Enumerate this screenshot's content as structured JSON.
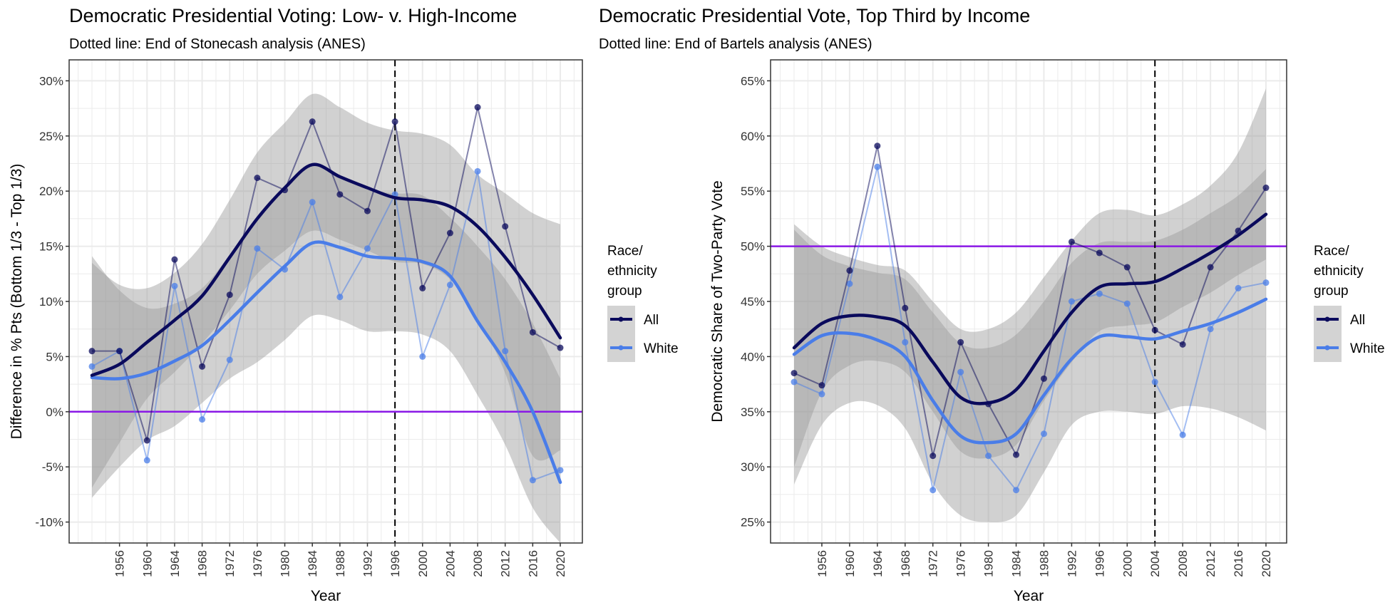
{
  "chart_data": [
    {
      "type": "line",
      "title": "Democratic Presidential Voting: Low- v. High-Income",
      "subtitle": "Dotted line: End of Stonecash analysis (ANES)",
      "xlabel": "Year",
      "ylabel": "Difference in % Pts (Bottom 1/3 - Top 1/3)",
      "x": [
        1952,
        1956,
        1960,
        1964,
        1968,
        1972,
        1976,
        1980,
        1984,
        1988,
        1992,
        1996,
        2000,
        2004,
        2008,
        2012,
        2016,
        2020
      ],
      "xticks": [
        "1956",
        "1960",
        "1964",
        "1968",
        "1972",
        "1976",
        "1980",
        "1984",
        "1988",
        "1992",
        "1996",
        "2000",
        "2004",
        "2008",
        "2012",
        "2016",
        "2020"
      ],
      "ylim": [
        -11.9,
        31.9
      ],
      "yticks": [
        -10,
        -5,
        0,
        5,
        10,
        15,
        20,
        25,
        30
      ],
      "ytick_labels": [
        "-10%",
        "-5%",
        "0%",
        "5%",
        "10%",
        "15%",
        "20%",
        "25%",
        "30%"
      ],
      "hline": 0,
      "vline": 1996,
      "grid": true,
      "legend": {
        "title": "Race/ ethnicity group",
        "title_lines": [
          "Race/",
          "ethnicity",
          "group"
        ],
        "placement": "right"
      },
      "series": [
        {
          "name": "All",
          "color": "#0a0a5c",
          "values": [
            5.5,
            5.5,
            -2.6,
            13.8,
            4.1,
            10.6,
            21.2,
            20.1,
            26.3,
            19.7,
            18.2,
            26.3,
            11.2,
            16.2,
            27.6,
            16.8,
            7.2,
            5.8
          ],
          "smooth": [
            3.3,
            4.3,
            6.3,
            8.3,
            10.5,
            14.0,
            17.5,
            20.3,
            22.4,
            21.3,
            20.3,
            19.4,
            19.2,
            18.6,
            16.8,
            14.0,
            10.6,
            6.7
          ],
          "ci_upper": [
            13.5,
            11.5,
            11.2,
            12.6,
            15.2,
            19.2,
            23.5,
            26.2,
            28.8,
            27.6,
            26.2,
            25.5,
            25.2,
            24.2,
            21.5,
            19.8,
            18.0,
            17.0
          ],
          "ci_lower": [
            -6.9,
            -2.8,
            1.2,
            3.6,
            6.2,
            9.2,
            12.5,
            14.6,
            16.4,
            15.6,
            14.6,
            13.6,
            13.4,
            12.0,
            8.5,
            3.5,
            -4.0,
            -3.5
          ]
        },
        {
          "name": "White",
          "color": "#4a7de8",
          "values": [
            4.1,
            5.5,
            -4.4,
            11.4,
            -0.7,
            4.7,
            14.8,
            12.9,
            19.0,
            10.4,
            14.8,
            19.7,
            5.0,
            11.5,
            21.8,
            5.5,
            -6.2,
            -5.3
          ],
          "smooth": [
            3.1,
            3.0,
            3.5,
            4.6,
            6.0,
            8.3,
            10.8,
            13.2,
            15.3,
            14.9,
            14.1,
            13.9,
            13.6,
            12.3,
            8.2,
            4.5,
            0.0,
            -6.4
          ],
          "ci_upper": [
            14.1,
            11.0,
            9.4,
            9.8,
            11.2,
            14.2,
            17.5,
            20.5,
            22.3,
            21.2,
            20.2,
            19.8,
            19.6,
            17.6,
            15.0,
            12.0,
            8.0,
            3.0
          ],
          "ci_lower": [
            -7.8,
            -5.0,
            -2.6,
            -1.3,
            0.8,
            3.0,
            4.5,
            6.5,
            8.7,
            8.3,
            7.3,
            7.3,
            7.0,
            5.5,
            1.5,
            -3.0,
            -8.7,
            -11.9
          ]
        }
      ]
    },
    {
      "type": "line",
      "title": "Democratic Presidential Vote, Top Third by Income",
      "subtitle": "Dotted line: End of Bartels analysis (ANES)",
      "xlabel": "Year",
      "ylabel": "Democratic Share of Two-Party Vote",
      "x": [
        1952,
        1956,
        1960,
        1964,
        1968,
        1972,
        1976,
        1980,
        1984,
        1988,
        1992,
        1996,
        2000,
        2004,
        2008,
        2012,
        2016,
        2020
      ],
      "xticks": [
        "1956",
        "1960",
        "1964",
        "1968",
        "1972",
        "1976",
        "1980",
        "1984",
        "1988",
        "1992",
        "1996",
        "2000",
        "2004",
        "2008",
        "2012",
        "2016",
        "2020"
      ],
      "ylim": [
        23.1,
        66.9
      ],
      "yticks": [
        25,
        30,
        35,
        40,
        45,
        50,
        55,
        60,
        65
      ],
      "ytick_labels": [
        "25%",
        "30%",
        "35%",
        "40%",
        "45%",
        "50%",
        "55%",
        "60%",
        "65%"
      ],
      "hline": 50,
      "vline": 2004,
      "grid": true,
      "legend": {
        "title": "Race/ ethnicity group",
        "title_lines": [
          "Race/",
          "ethnicity",
          "group"
        ],
        "placement": "right"
      },
      "series": [
        {
          "name": "All",
          "color": "#0a0a5c",
          "values": [
            38.5,
            37.4,
            47.8,
            59.1,
            44.4,
            31.0,
            41.3,
            35.7,
            31.1,
            38.0,
            50.4,
            49.4,
            48.1,
            42.4,
            41.1,
            48.1,
            51.4,
            55.3
          ],
          "smooth": [
            40.8,
            43.0,
            43.7,
            43.6,
            42.8,
            39.5,
            36.3,
            35.8,
            37.0,
            40.5,
            44.0,
            46.3,
            46.6,
            46.8,
            48.0,
            49.4,
            51.0,
            52.9
          ],
          "ci_upper": [
            51.5,
            49.2,
            48.2,
            47.6,
            47.0,
            44.0,
            41.2,
            40.8,
            42.0,
            45.0,
            48.5,
            50.3,
            50.4,
            50.5,
            51.5,
            53.0,
            54.6,
            57.0
          ],
          "ci_lower": [
            30.0,
            36.8,
            39.2,
            39.6,
            38.6,
            35.0,
            31.4,
            30.8,
            32.0,
            36.0,
            39.5,
            42.3,
            42.8,
            43.1,
            44.5,
            45.8,
            47.4,
            48.8
          ]
        },
        {
          "name": "White",
          "color": "#4a7de8",
          "values": [
            37.7,
            36.6,
            46.6,
            57.2,
            41.3,
            27.9,
            38.6,
            31.0,
            27.9,
            33.0,
            45.0,
            45.7,
            44.8,
            37.7,
            32.9,
            42.5,
            46.2,
            46.7
          ],
          "smooth": [
            40.2,
            41.9,
            42.1,
            41.5,
            40.0,
            36.0,
            32.8,
            32.2,
            33.0,
            36.5,
            39.8,
            41.8,
            41.8,
            41.6,
            42.3,
            43.0,
            44.0,
            45.2
          ],
          "ci_upper": [
            52.0,
            50.0,
            49.0,
            48.3,
            47.8,
            45.0,
            42.5,
            42.5,
            44.0,
            47.2,
            50.5,
            53.0,
            53.3,
            52.8,
            53.8,
            55.5,
            58.5,
            64.3
          ],
          "ci_lower": [
            28.4,
            33.8,
            35.8,
            35.6,
            33.5,
            28.5,
            25.6,
            25.0,
            25.6,
            29.5,
            33.8,
            35.0,
            35.0,
            34.8,
            35.5,
            35.3,
            34.5,
            33.3
          ]
        }
      ]
    }
  ]
}
